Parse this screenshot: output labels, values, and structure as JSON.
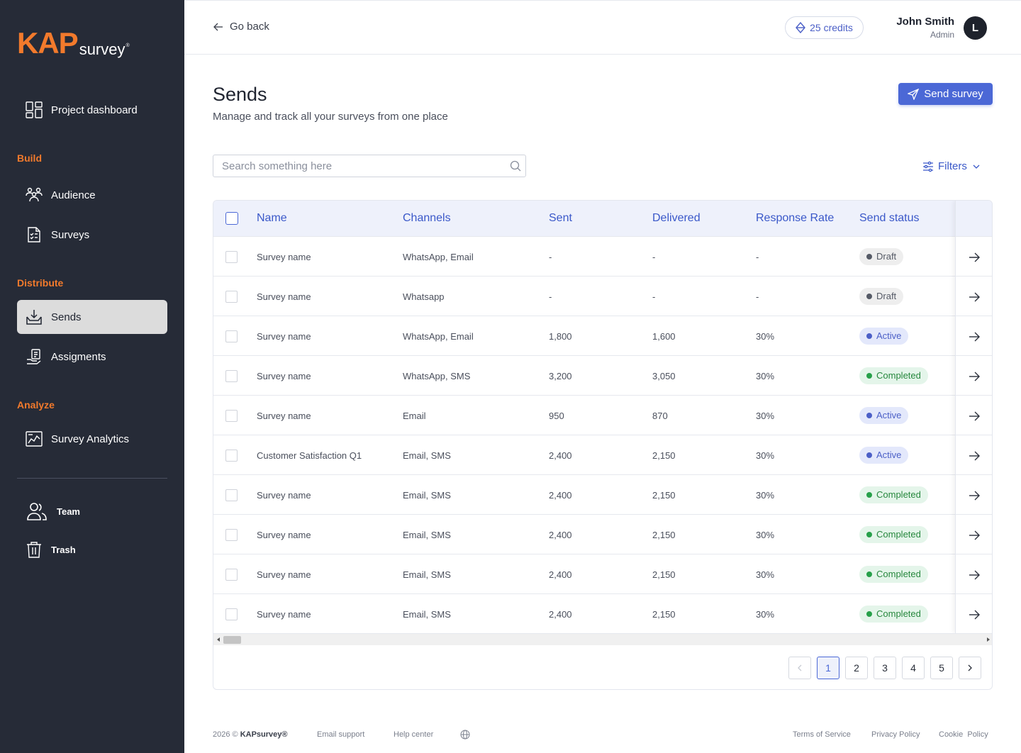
{
  "logo": {
    "primary": "KAP",
    "secondary": "survey",
    "mark": "®"
  },
  "sidebar": {
    "top_item": {
      "label": "Project dashboard",
      "icon": "dashboard-icon"
    },
    "sections": {
      "build": {
        "label": "Build",
        "items": [
          {
            "label": "Audience",
            "icon": "audience-icon"
          },
          {
            "label": "Surveys",
            "icon": "surveys-icon"
          }
        ]
      },
      "distribute": {
        "label": "Distribute",
        "items": [
          {
            "label": "Sends",
            "icon": "sends-icon",
            "active": true
          },
          {
            "label": "Assigments",
            "icon": "assignments-icon"
          }
        ]
      },
      "analyze": {
        "label": "Analyze",
        "items": [
          {
            "label": "Survey Analytics",
            "icon": "analytics-icon"
          }
        ]
      }
    },
    "bottom_items": [
      {
        "label": "Team",
        "icon": "team-icon"
      },
      {
        "label": "Trash",
        "icon": "trash-icon"
      }
    ]
  },
  "topbar": {
    "go_back": "Go back",
    "credits": "25 credits",
    "user": {
      "name": "John Smith",
      "role": "Admin",
      "initial": "L"
    }
  },
  "header": {
    "title": "Sends",
    "subtitle": "Manage and track all your surveys from one place",
    "send_button": "Send survey"
  },
  "search": {
    "placeholder": "Search something here"
  },
  "filters": {
    "label": "Filters"
  },
  "table": {
    "columns": [
      "Name",
      "Channels",
      "Sent",
      "Delivered",
      "Response Rate",
      "Send status"
    ],
    "rows": [
      {
        "name": "Survey name",
        "channels": "WhatsApp, Email",
        "sent": "-",
        "delivered": "-",
        "rate": "-",
        "status": "Draft",
        "status_type": "draft"
      },
      {
        "name": "Survey name",
        "channels": "Whatsapp",
        "sent": "-",
        "delivered": "-",
        "rate": "-",
        "status": "Draft",
        "status_type": "draft"
      },
      {
        "name": "Survey name",
        "channels": "WhatsApp, Email",
        "sent": "1,800",
        "delivered": "1,600",
        "rate": "30%",
        "status": "Active",
        "status_type": "active"
      },
      {
        "name": "Survey name",
        "channels": "WhatsApp, SMS",
        "sent": "3,200",
        "delivered": "3,050",
        "rate": "30%",
        "status": "Completed",
        "status_type": "completed"
      },
      {
        "name": "Survey name",
        "channels": "Email",
        "sent": "950",
        "delivered": "870",
        "rate": "30%",
        "status": "Active",
        "status_type": "active"
      },
      {
        "name": "Customer Satisfaction Q1",
        "channels": "Email, SMS",
        "sent": "2,400",
        "delivered": "2,150",
        "rate": "30%",
        "status": "Active",
        "status_type": "active"
      },
      {
        "name": "Survey name",
        "channels": "Email, SMS",
        "sent": "2,400",
        "delivered": "2,150",
        "rate": "30%",
        "status": "Completed",
        "status_type": "completed"
      },
      {
        "name": "Survey name",
        "channels": "Email, SMS",
        "sent": "2,400",
        "delivered": "2,150",
        "rate": "30%",
        "status": "Completed",
        "status_type": "completed"
      },
      {
        "name": "Survey name",
        "channels": "Email, SMS",
        "sent": "2,400",
        "delivered": "2,150",
        "rate": "30%",
        "status": "Completed",
        "status_type": "completed"
      },
      {
        "name": "Survey name",
        "channels": "Email, SMS",
        "sent": "2,400",
        "delivered": "2,150",
        "rate": "30%",
        "status": "Completed",
        "status_type": "completed"
      }
    ]
  },
  "pagination": {
    "pages": [
      "1",
      "2",
      "3",
      "4",
      "5"
    ],
    "current": "1"
  },
  "footer": {
    "copyright_prefix": "2026 ©",
    "brand": "KAPsurvey®",
    "email_support": "Email support",
    "help_center": "Help center",
    "terms": "Terms of Service",
    "privacy": "Privacy Policy",
    "cookie": "Cookie  Policy"
  },
  "colors": {
    "accent": "#4b68d6",
    "brand": "#f27a2c",
    "sidebar": "#262b37"
  }
}
